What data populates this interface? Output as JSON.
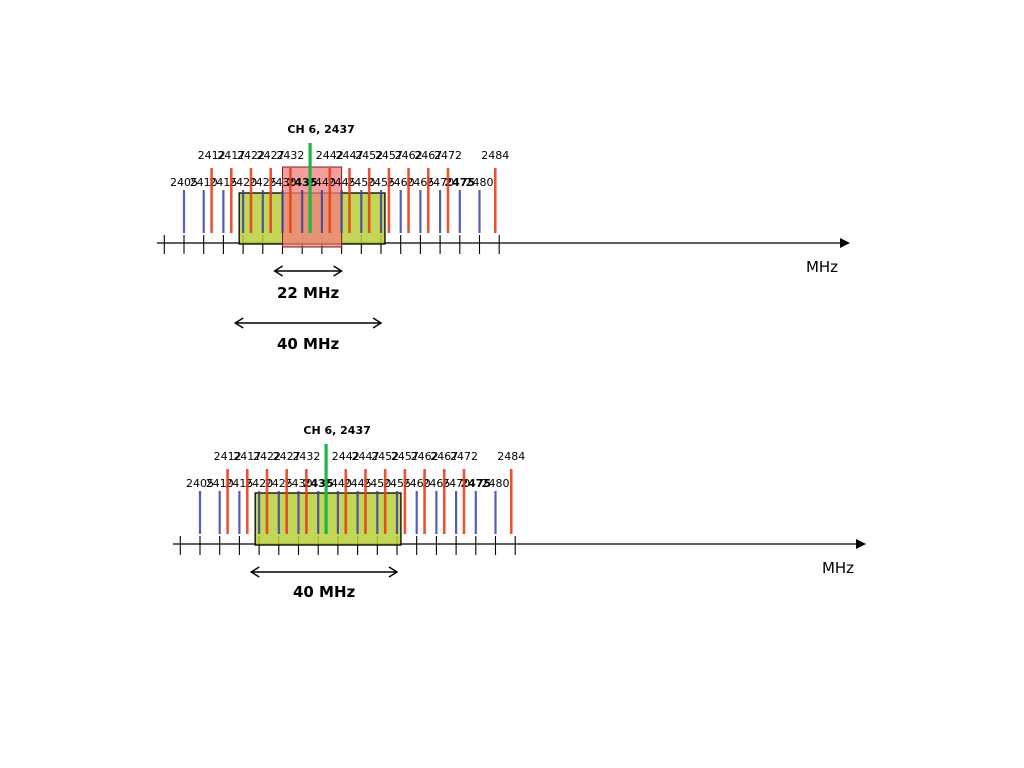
{
  "diagrams": [
    {
      "id": "top",
      "callout": "CH 6, 2437",
      "odd_labels": [
        "2412",
        "2417",
        "2422",
        "2427",
        "2432",
        "2442",
        "2447",
        "2452",
        "2457",
        "2462",
        "2467",
        "2472",
        "2484"
      ],
      "even_labels": [
        "2405",
        "2410",
        "2415",
        "2420",
        "2425",
        "2430",
        "2435",
        "2440",
        "2445",
        "2450",
        "2455",
        "2460",
        "2465",
        "2470",
        "2475",
        "2480"
      ],
      "bold_labels": [
        "2435",
        "2475"
      ],
      "unit": "MHz",
      "spans": [
        {
          "label": "22 MHz"
        },
        {
          "label": "40 MHz"
        }
      ]
    },
    {
      "id": "bottom",
      "callout": "CH 6, 2437",
      "odd_labels": [
        "2412",
        "2417",
        "2422",
        "2427",
        "2432",
        "2442",
        "2447",
        "2452",
        "2457",
        "2462",
        "2467",
        "2472",
        "2484"
      ],
      "even_labels": [
        "2405",
        "2410",
        "2415",
        "2420",
        "2425",
        "2430",
        "2435",
        "2440",
        "2445",
        "2450",
        "2455",
        "2460",
        "2465",
        "2470",
        "2475",
        "2480"
      ],
      "bold_labels": [
        "2435",
        "2475"
      ],
      "unit": "MHz",
      "spans": [
        {
          "label": "40 MHz"
        }
      ]
    }
  ],
  "colors": {
    "red_channel": "#e8401c",
    "blue_channel": "#3a3ea8",
    "green_center": "#1db44a",
    "pink_band": "#f47c7c",
    "olive_band": "#b8cf3a",
    "axis": "#000000"
  }
}
